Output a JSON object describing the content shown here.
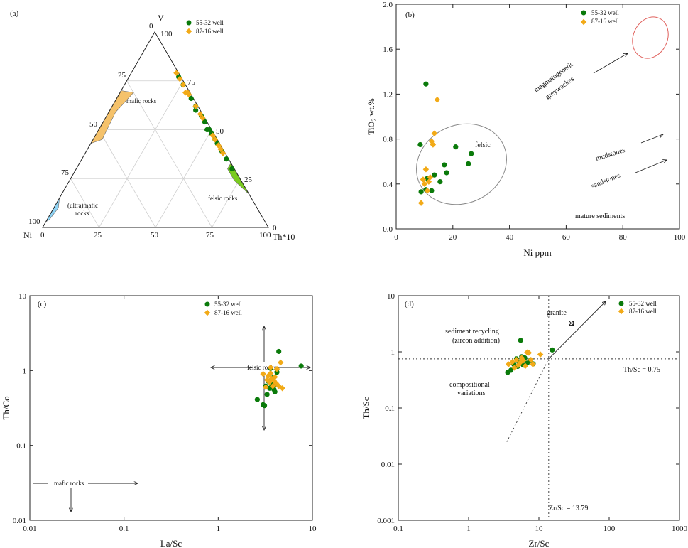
{
  "colors": {
    "well1": "#0a7a0a",
    "well2": "#f2aa17",
    "mafic_field": "#f5c26b",
    "ultramafic_field": "#8fd3f4",
    "felsic_field": "#7acb1f",
    "greywacke_ellipse": "#e0605c",
    "felsic_ellipse": "#888888"
  },
  "legend": {
    "well1": "55-32 well",
    "well2": "87-16 well"
  },
  "chart_data": [
    {
      "id": "a",
      "type": "scatter",
      "subtype": "ternary",
      "panel_label": "(a)",
      "vertices": {
        "top": "V",
        "left": "Ni",
        "right": "Th*10"
      },
      "ticks": [
        "0",
        "25",
        "50",
        "75",
        "100"
      ],
      "field_labels": {
        "mafic": "mafic rocks",
        "ultramafic_1": "(ultra)mafic",
        "ultramafic_2": "rocks",
        "felsic": "felsic rocks"
      },
      "series": [
        {
          "name": "55-32 well",
          "points": [
            [
              1,
              77,
              22
            ],
            [
              1,
              73,
              26
            ],
            [
              1,
              66,
              33
            ],
            [
              1,
              62,
              37
            ],
            [
              2,
              60,
              38
            ],
            [
              1,
              57,
              42
            ],
            [
              1,
              54,
              45
            ],
            [
              1,
              50,
              49
            ],
            [
              2,
              50,
              48
            ],
            [
              1,
              48,
              51
            ],
            [
              1,
              45,
              54
            ],
            [
              1,
              43,
              56
            ],
            [
              1,
              39,
              60
            ],
            [
              1,
              35,
              64
            ],
            [
              1,
              30,
              69
            ]
          ]
        },
        {
          "name": "87-16 well",
          "points": [
            [
              1,
              79,
              20
            ],
            [
              1,
              76,
              23
            ],
            [
              1,
              73,
              26
            ],
            [
              1,
              69,
              30
            ],
            [
              1,
              68,
              31
            ],
            [
              2,
              69,
              29
            ],
            [
              1,
              62,
              37
            ],
            [
              1,
              58,
              41
            ],
            [
              1,
              56,
              43
            ],
            [
              1,
              47,
              52
            ],
            [
              1,
              45,
              54
            ],
            [
              1,
              42,
              57
            ],
            [
              1,
              40,
              59
            ],
            [
              1,
              38,
              61
            ]
          ]
        }
      ]
    },
    {
      "id": "b",
      "type": "scatter",
      "panel_label": "(b)",
      "xlabel": "Ni ppm",
      "ylabel_main": "TiO",
      "ylabel_sub": "2",
      "ylabel_rest": " wt.%",
      "xlim": [
        0,
        100
      ],
      "ylim": [
        0,
        2
      ],
      "xticks": [
        0,
        20,
        40,
        60,
        80,
        100
      ],
      "yticks": [
        0,
        0.4,
        0.8,
        1.2,
        1.6,
        2
      ],
      "xtick_labels": [
        "0",
        "20",
        "40",
        "60",
        "80",
        "100"
      ],
      "ytick_labels": [
        "0.0",
        "0.4",
        "0.8",
        "1.2",
        "1.6",
        "2.0"
      ],
      "annotations": {
        "felsic": "felsic",
        "greywackes_1": "magmatogenetic",
        "greywackes_2": "greywackes",
        "mudstones": "mudstones",
        "sandstones": "sandstones",
        "mature": "mature sediments"
      },
      "series": [
        {
          "name": "55-32 well",
          "x": [
            8.5,
            8.8,
            10.5,
            10.5,
            11.0,
            12.5,
            13.5,
            15.5,
            17.0,
            17.8,
            21.0,
            25.5,
            26.5
          ],
          "y": [
            0.75,
            0.33,
            1.29,
            0.35,
            0.45,
            0.34,
            0.48,
            0.42,
            0.57,
            0.5,
            0.73,
            0.58,
            0.67
          ]
        },
        {
          "name": "87-16 well",
          "x": [
            8.8,
            9.5,
            10.0,
            10.5,
            11.0,
            11.5,
            12.0,
            12.5,
            13.0,
            13.5,
            14.5
          ],
          "y": [
            0.23,
            0.44,
            0.4,
            0.53,
            0.34,
            0.42,
            0.46,
            0.78,
            0.75,
            0.85,
            1.15
          ]
        }
      ]
    },
    {
      "id": "c",
      "type": "scatter",
      "scale": "log-log",
      "panel_label": "(c)",
      "xlabel": "La/Sc",
      "ylabel": "Th/Co",
      "xlim": [
        0.01,
        10
      ],
      "ylim": [
        0.01,
        10
      ],
      "xticks": [
        0.01,
        0.1,
        1,
        10
      ],
      "yticks": [
        0.01,
        0.1,
        1,
        10
      ],
      "xtick_labels": [
        "0.01",
        "0.1",
        "1",
        "10"
      ],
      "ytick_labels": [
        "0.01",
        "0.1",
        "1",
        "10"
      ],
      "annotations": {
        "felsic": "felsic rocks",
        "mafic": "mafic rocks"
      },
      "series": [
        {
          "name": "55-32 well",
          "x": [
            2.6,
            3.0,
            3.1,
            3.3,
            3.4,
            3.6,
            3.7,
            3.8,
            3.9,
            4.0,
            4.1,
            4.2,
            4.4,
            7.6,
            3.5,
            3.2
          ],
          "y": [
            0.41,
            0.35,
            0.34,
            0.48,
            0.72,
            1.07,
            0.65,
            0.8,
            0.56,
            0.52,
            0.66,
            0.95,
            1.8,
            1.15,
            0.58,
            0.62
          ]
        },
        {
          "name": "87-16 well",
          "x": [
            3.0,
            3.2,
            3.4,
            3.5,
            3.6,
            3.7,
            3.8,
            3.9,
            4.0,
            4.1,
            4.2,
            4.4,
            4.6,
            4.8,
            3.3,
            3.6
          ],
          "y": [
            0.9,
            0.6,
            0.85,
            0.7,
            0.92,
            0.78,
            0.62,
            0.74,
            0.82,
            0.68,
            1.05,
            0.62,
            1.28,
            0.58,
            0.75,
            1.1
          ]
        }
      ]
    },
    {
      "id": "d",
      "type": "scatter",
      "scale": "log-log",
      "panel_label": "(d)",
      "xlabel": "Zr/Sc",
      "ylabel": "Th/Sc",
      "xlim": [
        0.1,
        1000
      ],
      "ylim": [
        0.001,
        10
      ],
      "xticks": [
        0.1,
        1,
        10,
        100,
        1000
      ],
      "yticks": [
        0.001,
        0.01,
        0.1,
        1,
        10
      ],
      "xtick_labels": [
        "0.1",
        "1",
        "10",
        "100",
        "1000"
      ],
      "ytick_labels": [
        "0.001",
        "0.01",
        "0.1",
        "1",
        "10"
      ],
      "reference_lines": {
        "th_sc": 0.75,
        "zr_sc": 13.79
      },
      "annotations": {
        "granite": "granite",
        "recycling_1": "sediment recycling",
        "recycling_2": "(zircon addition)",
        "variations_1": "compositional",
        "variations_2": "variations",
        "th_sc_label": "Th/Sc = 0.75",
        "zr_sc_label": "Zr/Sc = 13.79",
        "granite_marker": "⊠"
      },
      "series": [
        {
          "name": "55-32 well",
          "x": [
            3.6,
            4.0,
            4.4,
            4.8,
            5.0,
            5.2,
            5.5,
            5.7,
            6.0,
            6.3,
            6.8,
            7.5,
            8.3,
            15.5
          ],
          "y": [
            0.43,
            0.47,
            0.6,
            0.75,
            0.55,
            0.65,
            1.6,
            0.82,
            0.58,
            0.78,
            0.63,
            0.7,
            0.61,
            1.08
          ]
        },
        {
          "name": "87-16 well",
          "x": [
            3.7,
            4.2,
            4.5,
            4.8,
            5.1,
            5.4,
            5.7,
            6.0,
            6.4,
            6.8,
            7.2,
            7.7,
            8.2,
            10.5
          ],
          "y": [
            0.6,
            0.66,
            0.52,
            0.72,
            0.58,
            0.64,
            0.78,
            0.7,
            0.56,
            0.98,
            0.96,
            0.72,
            0.6,
            0.9
          ]
        }
      ]
    }
  ]
}
